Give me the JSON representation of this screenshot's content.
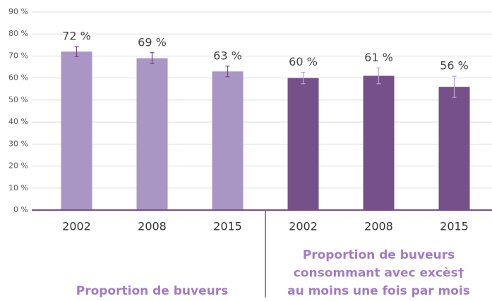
{
  "chart_data": {
    "type": "bar",
    "ylim": [
      0,
      90
    ],
    "yticks": [
      {
        "value": 0,
        "label": "0 %"
      },
      {
        "value": 10,
        "label": "10 %"
      },
      {
        "value": 20,
        "label": "20 %"
      },
      {
        "value": 30,
        "label": "30 %"
      },
      {
        "value": 40,
        "label": "40 %"
      },
      {
        "value": 50,
        "label": "50 %"
      },
      {
        "value": 60,
        "label": "60 %"
      },
      {
        "value": 70,
        "label": "70 %"
      },
      {
        "value": 80,
        "label": "80 %"
      },
      {
        "value": 90,
        "label": "90 %"
      }
    ],
    "grid": true,
    "series": [
      {
        "name": [
          "Proportion de buveurs"
        ],
        "color": "#a996c5",
        "error_color": "#6e4a85",
        "categories": [
          "2002",
          "2008",
          "2015"
        ],
        "values": [
          72,
          69,
          63
        ],
        "errors": [
          2.3,
          2.5,
          2.4
        ],
        "value_labels": [
          "72 %",
          "69 %",
          "63 %"
        ]
      },
      {
        "name": [
          "Proportion de buveurs",
          "consommant avec excès†",
          "au moins une fois par mois"
        ],
        "color": "#765088",
        "error_color": "#b9a6d3",
        "categories": [
          "2002",
          "2008",
          "2015"
        ],
        "values": [
          60,
          61,
          56
        ],
        "errors": [
          2.6,
          3.6,
          4.8
        ],
        "value_labels": [
          "60 %",
          "61 %",
          "56 %"
        ]
      }
    ]
  }
}
